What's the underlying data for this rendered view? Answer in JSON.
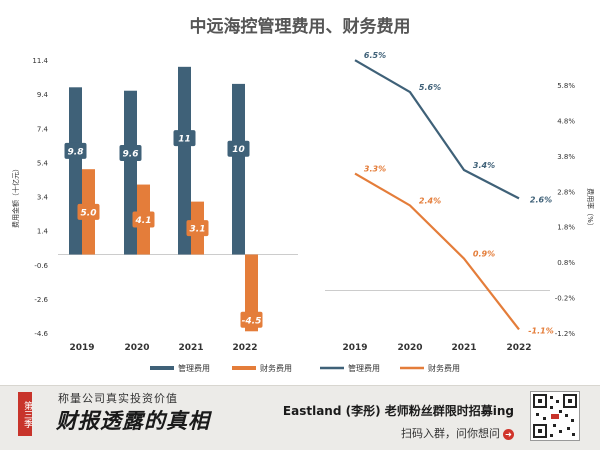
{
  "chart_title": "中远海控管理费用、财务费用",
  "chart_data": [
    {
      "type": "bar",
      "categories": [
        "2019",
        "2020",
        "2021",
        "2022"
      ],
      "series": [
        {
          "name": "管理费用",
          "values": [
            9.8,
            9.6,
            11,
            10
          ],
          "labels": [
            "9.8",
            "9.6",
            "11",
            "10"
          ],
          "color": "#3f6178"
        },
        {
          "name": "财务费用",
          "values": [
            5.0,
            4.1,
            3.1,
            -4.5
          ],
          "labels": [
            "5.0",
            "4.1",
            "3.1",
            "-4.5"
          ],
          "color": "#e47d3a"
        }
      ],
      "ylabel": "费用金额（十亿元）",
      "ylim": [
        -4.6,
        11.4
      ],
      "yticks": [
        "11.4",
        "9.4",
        "7.4",
        "5.4",
        "3.4",
        "1.4",
        "-0.6",
        "-2.6",
        "-4.6"
      ],
      "legend": "bottom"
    },
    {
      "type": "line",
      "categories": [
        "2019",
        "2020",
        "2021",
        "2022"
      ],
      "series": [
        {
          "name": "管理费用",
          "values": [
            6.5,
            5.6,
            3.4,
            2.6
          ],
          "labels": [
            "6.5%",
            "5.6%",
            "3.4%",
            "2.6%"
          ],
          "color": "#3f6178"
        },
        {
          "name": "财务费用",
          "values": [
            3.3,
            2.4,
            0.9,
            -1.1
          ],
          "labels": [
            "3.3%",
            "2.4%",
            "0.9%",
            "-1.1%"
          ],
          "color": "#e47d3a"
        }
      ],
      "ylabel": "费用率（%）",
      "ylim": [
        -1.2,
        6.5
      ],
      "yticks": [
        "5.8%",
        "4.8%",
        "3.8%",
        "2.8%",
        "1.8%",
        "0.8%",
        "-0.2%",
        "-1.2%"
      ],
      "legend": "bottom"
    }
  ],
  "footer": {
    "season": "第三季",
    "slogan_top": "称量公司真实投资价值",
    "slogan_main": "财报透露的真相",
    "promo": "Eastland (李彤) 老师粉丝群限时招募ing",
    "cta": "扫码入群，问你想问",
    "cta_icon": "arrow-right-icon"
  }
}
